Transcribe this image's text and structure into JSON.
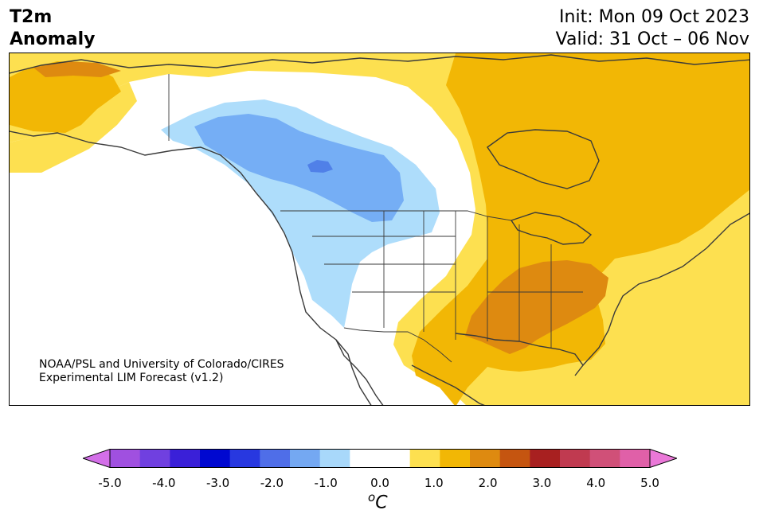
{
  "header": {
    "title_line1": "T2m",
    "title_line2": "Anomaly",
    "init": "Init: Mon 09 Oct 2023",
    "valid": "Valid: 31 Oct – 06 Nov"
  },
  "credit": {
    "line1": "NOAA/PSL and University of Colorado/CIRES",
    "line2": "Experimental LIM Forecast (v1.2)"
  },
  "colorbar": {
    "unit_base": "C",
    "unit_sup": "o",
    "tick_labels": [
      "-5.0",
      "-4.0",
      "-3.0",
      "-2.0",
      "-1.0",
      "0.0",
      "1.0",
      "2.0",
      "3.0",
      "4.0",
      "5.0"
    ],
    "colors": [
      "#d36fe8",
      "#a050e0",
      "#7040e0",
      "#3a20d8",
      "#0008d0",
      "#2838e0",
      "#4f6ee8",
      "#74a8f2",
      "#a8d8fa",
      "#ffffff",
      "#ffffff",
      "#fde050",
      "#f2b705",
      "#de8a10",
      "#c55510",
      "#a82020",
      "#c03a50",
      "#d05078",
      "#e060a8",
      "#ea78d8"
    ],
    "colors_cold": [
      "#aeddfb",
      "#75aef5",
      "#5080e8"
    ],
    "colors_warm": [
      "#fde050",
      "#f2b705",
      "#de8a10"
    ],
    "land_line": "#3a3a3a"
  }
}
